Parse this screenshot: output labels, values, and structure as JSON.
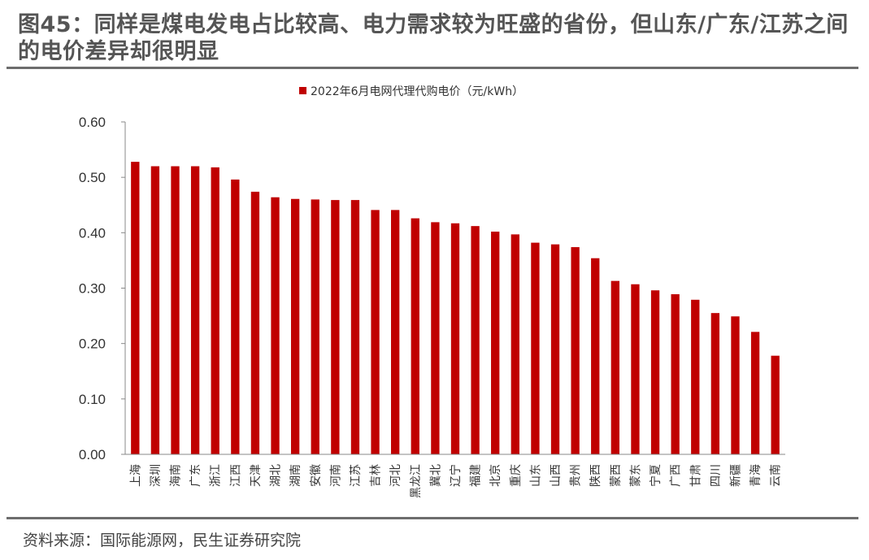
{
  "header": {
    "title": "图45：同样是煤电发电占比较高、电力需求较为旺盛的省份，但山东/广东/江苏之间的电价差异却很明显"
  },
  "footer": {
    "source": "资料来源：国际能源网，民生证券研究院"
  },
  "colors": {
    "bar": "#c00000",
    "axis": "#888888",
    "rule": "#6d6d6d"
  },
  "chart_data": {
    "type": "bar",
    "title": "",
    "xlabel": "",
    "ylabel": "",
    "ylim": [
      0,
      0.6
    ],
    "yticks": [
      "0.00",
      "0.10",
      "0.20",
      "0.30",
      "0.40",
      "0.50",
      "0.60"
    ],
    "legend_position": "top-center",
    "series": [
      {
        "name": "2022年6月电网代理代购电价（元/kWh）",
        "color": "#c00000",
        "values": [
          0.528,
          0.52,
          0.52,
          0.52,
          0.518,
          0.496,
          0.474,
          0.464,
          0.461,
          0.46,
          0.459,
          0.459,
          0.441,
          0.441,
          0.426,
          0.419,
          0.417,
          0.412,
          0.402,
          0.397,
          0.382,
          0.379,
          0.374,
          0.354,
          0.313,
          0.307,
          0.296,
          0.289,
          0.279,
          0.255,
          0.249,
          0.221,
          0.178
        ]
      }
    ],
    "categories": [
      "上海",
      "深圳",
      "海南",
      "广东",
      "浙江",
      "江西",
      "天津",
      "湖北",
      "湖南",
      "安徽",
      "河南",
      "江苏",
      "吉林",
      "河北",
      "黑龙江",
      "冀北",
      "辽宁",
      "福建",
      "北京",
      "重庆",
      "山东",
      "山西",
      "贵州",
      "陕西",
      "蒙西",
      "蒙东",
      "宁夏",
      "广西",
      "甘肃",
      "四川",
      "新疆",
      "青海",
      "云南"
    ]
  }
}
